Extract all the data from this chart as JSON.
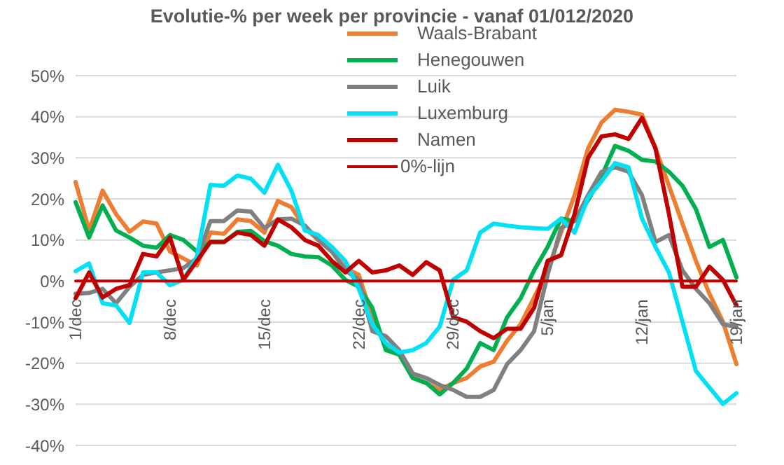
{
  "chart_data": {
    "type": "line",
    "title": "Evolutie-% per week per provincie - vanaf 01/012/2020",
    "categories": [
      "1/dec",
      null,
      null,
      null,
      null,
      null,
      null,
      "8/dec",
      null,
      null,
      null,
      null,
      null,
      null,
      "15/dec",
      null,
      null,
      null,
      null,
      null,
      null,
      "22/dec",
      null,
      null,
      null,
      null,
      null,
      null,
      "29/dec",
      null,
      null,
      null,
      null,
      null,
      null,
      "5/jan",
      null,
      null,
      null,
      null,
      null,
      null,
      "12/jan",
      null,
      null,
      null,
      null,
      null,
      null,
      "19/jan"
    ],
    "series": [
      {
        "name": "Waals-Brabant",
        "color": "#ed7d31",
        "values": [
          24.1,
          12.3,
          22,
          16.3,
          12,
          14.5,
          14,
          7.2,
          5.5,
          3.8,
          11.8,
          11.5,
          15,
          14.6,
          11.8,
          19.5,
          18,
          12.9,
          10,
          7.2,
          3.2,
          1.5,
          -8.8,
          -16.2,
          -17.9,
          -23.6,
          -24.8,
          -26.5,
          -24.8,
          -23.6,
          -20.8,
          -19.6,
          -14.5,
          -10.5,
          -4,
          2.6,
          11.8,
          20.9,
          32.3,
          38.6,
          41.7,
          41.2,
          40.5,
          32.3,
          23.2,
          14,
          4.9,
          -3.1,
          -9.9,
          -20.2
        ]
      },
      {
        "name": "Henegouwen",
        "color": "#00b050",
        "values": [
          19.2,
          10.6,
          18.4,
          12.3,
          10.6,
          8.6,
          8.1,
          11.2,
          10,
          7.2,
          9.5,
          9.5,
          12,
          12.2,
          9.7,
          8.6,
          6.6,
          6,
          5.8,
          3.8,
          0.3,
          -1.4,
          -6.5,
          -16.8,
          -17.9,
          -23.6,
          -24.8,
          -27.6,
          -24.8,
          -21.3,
          -15.1,
          -16.8,
          -8.8,
          -4.2,
          2.6,
          8.3,
          15.2,
          14.6,
          19.7,
          25.5,
          32.9,
          31.7,
          29.5,
          29.1,
          26.6,
          23.2,
          17.5,
          8.3,
          10,
          0.9
        ]
      },
      {
        "name": "Luik",
        "color": "#808080",
        "values": [
          -3.1,
          -2.9,
          -1.9,
          -5.4,
          -1.4,
          1.5,
          2.1,
          2.6,
          3.2,
          5.5,
          14.6,
          14.6,
          17.2,
          16.9,
          12.9,
          15,
          15.2,
          13.5,
          10,
          7.2,
          2.6,
          0.3,
          -12.2,
          -13.4,
          -16.8,
          -22.5,
          -23.6,
          -25.3,
          -26.5,
          -28.2,
          -28.2,
          -26.5,
          -20.2,
          -16.8,
          -12.2,
          1.5,
          12.9,
          14.6,
          20.9,
          26.6,
          27.7,
          26.6,
          20.9,
          9.5,
          11.2,
          2.6,
          -1.9,
          -5.4,
          -10.5,
          -11.1
        ]
      },
      {
        "name": "Luxemburg",
        "color": "#00e1f5",
        "values": [
          2.4,
          4.3,
          -5.4,
          -5.9,
          -10.2,
          2.1,
          2.1,
          -1,
          0.3,
          6,
          23.4,
          23.2,
          25.7,
          24.9,
          21.5,
          28.3,
          22,
          12.3,
          11.2,
          8.3,
          4.9,
          -1.9,
          -10.5,
          -15.1,
          -17.4,
          -16.8,
          -15.1,
          -11.1,
          0.3,
          2.6,
          11.8,
          14,
          13.5,
          13.1,
          12.9,
          12.7,
          15.2,
          11.8,
          20.3,
          24.3,
          28.7,
          27.7,
          15.2,
          8.3,
          2.1,
          -9.9,
          -21.9,
          -25.9,
          -29.9,
          -27.3
        ]
      },
      {
        "name": "Namen",
        "color": "#c00000",
        "values": [
          -4.2,
          2.1,
          -4,
          -1.9,
          -1,
          6.6,
          6,
          10.6,
          0.3,
          4.9,
          9.5,
          9.5,
          11.8,
          11.2,
          8.6,
          15,
          13.1,
          10,
          8.6,
          4.9,
          2.1,
          4.9,
          2.1,
          2.6,
          3.8,
          1.5,
          4.6,
          2.6,
          -8.8,
          -9.9,
          -12.2,
          -13.9,
          -11.6,
          -11.6,
          -6.5,
          4.9,
          6.3,
          16.3,
          30,
          35.2,
          35.7,
          34.6,
          39.7,
          32.3,
          16.3,
          -1.4,
          -1.4,
          3.5,
          0.3,
          -5.9
        ]
      },
      {
        "name": "0%-lijn",
        "color": "#c00000",
        "values": [
          0,
          0,
          0,
          0,
          0,
          0,
          0,
          0,
          0,
          0,
          0,
          0,
          0,
          0,
          0,
          0,
          0,
          0,
          0,
          0,
          0,
          0,
          0,
          0,
          0,
          0,
          0,
          0,
          0,
          0,
          0,
          0,
          0,
          0,
          0,
          0,
          0,
          0,
          0,
          0,
          0,
          0,
          0,
          0,
          0,
          0,
          0,
          0,
          0,
          0
        ]
      }
    ],
    "ylim": [
      -40,
      50
    ],
    "yticks": [
      {
        "value": -40,
        "label": "-40%"
      },
      {
        "value": -30,
        "label": "-30%"
      },
      {
        "value": -20,
        "label": "-20%"
      },
      {
        "value": -10,
        "label": "-10%"
      },
      {
        "value": 0,
        "label": "0%"
      },
      {
        "value": 10,
        "label": "10%"
      },
      {
        "value": 20,
        "label": "20%"
      },
      {
        "value": 30,
        "label": "30%"
      },
      {
        "value": 40,
        "label": "40%"
      },
      {
        "value": 50,
        "label": "50%"
      }
    ],
    "grid": "y",
    "legend": "top",
    "marker": "none",
    "line_style": "solid"
  }
}
